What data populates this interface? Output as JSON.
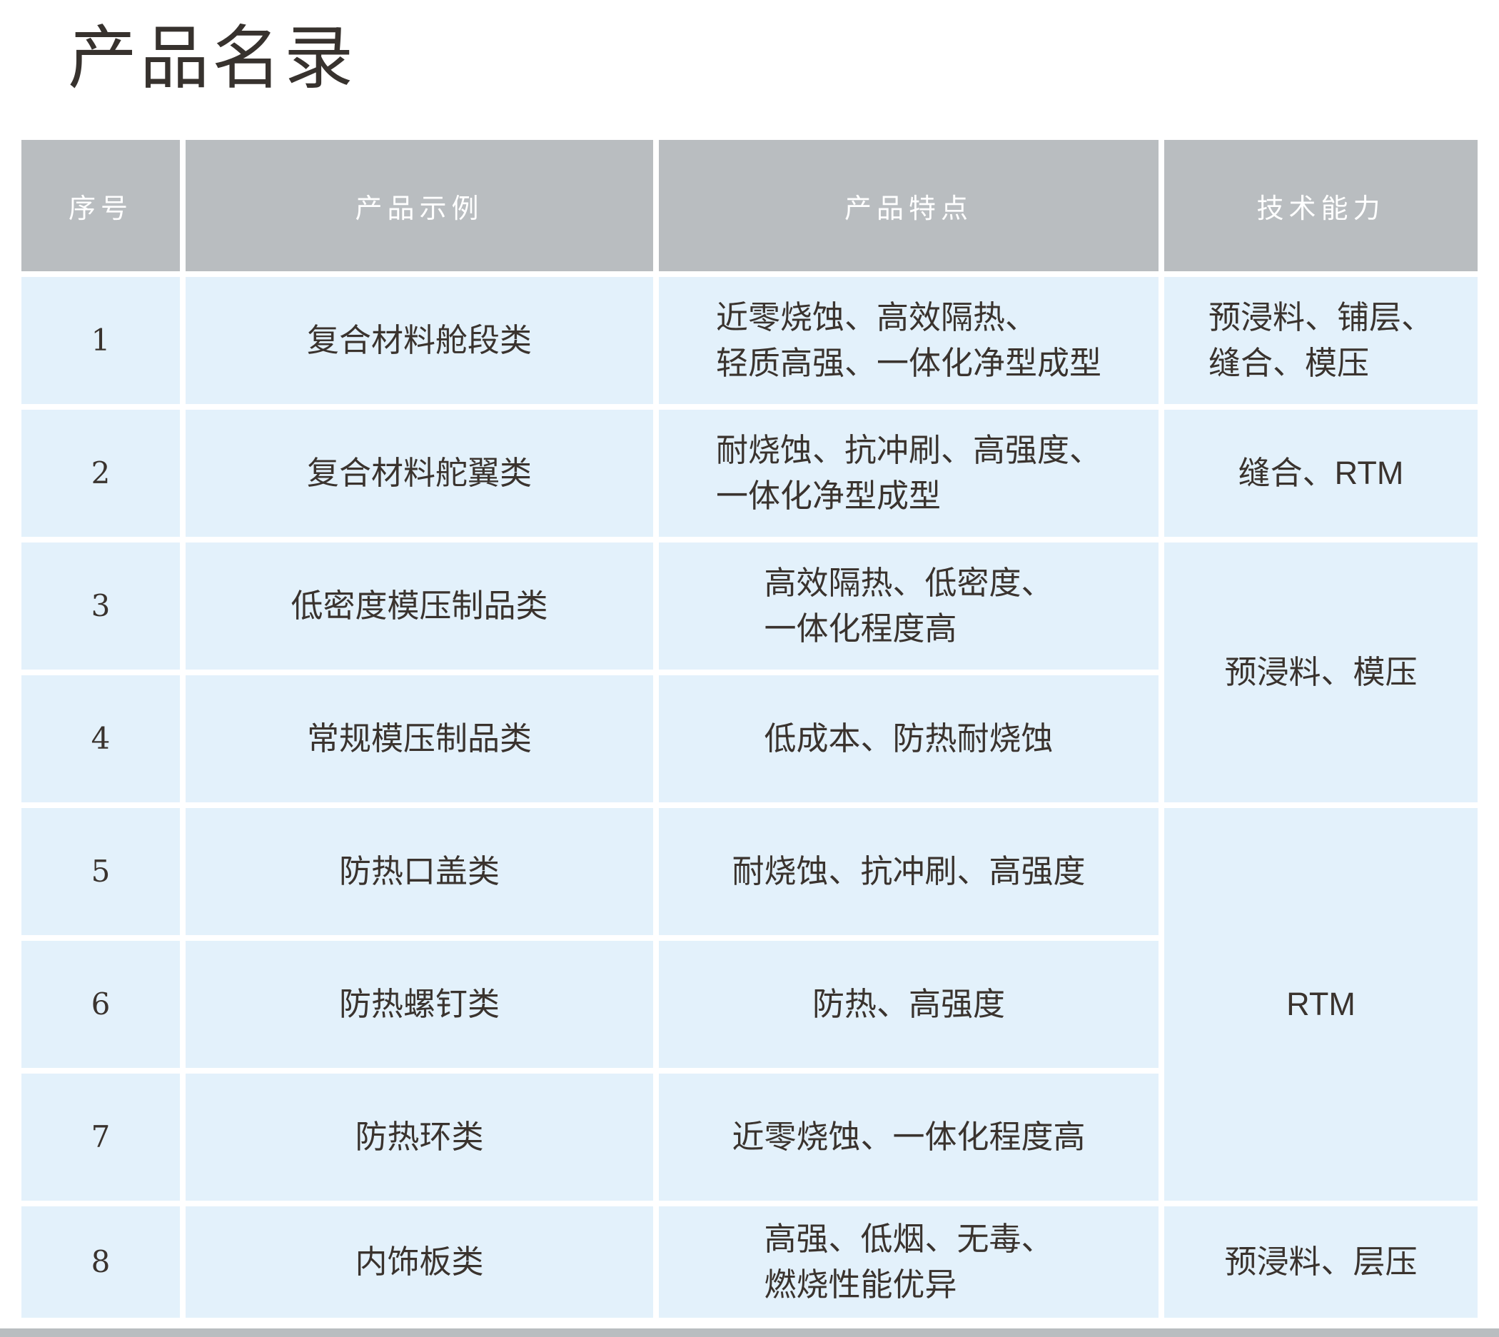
{
  "page": {
    "title": "产品名录"
  },
  "colors": {
    "header_bg": "#b9bdc0",
    "header_text": "#ffffff",
    "cell_bg": "#e3f1fb",
    "body_text": "#3a332e",
    "bottom_bar": "#b9bdc0",
    "page_bg": "#ffffff"
  },
  "table": {
    "headers": [
      "序号",
      "产品示例",
      "产品特点",
      "技术能力"
    ],
    "rows": [
      {
        "no": "1",
        "product": "复合材料舱段类",
        "features": "近零烧蚀、高效隔热、\n轻质高强、一体化净型成型",
        "tech": "预浸料、铺层、\n缝合、模压",
        "tech_rowspan": 1
      },
      {
        "no": "2",
        "product": "复合材料舵翼类",
        "features": "耐烧蚀、抗冲刷、高强度、\n一体化净型成型",
        "tech": "缝合、RTM",
        "tech_rowspan": 1
      },
      {
        "no": "3",
        "product": "低密度模压制品类",
        "features": "高效隔热、低密度、\n一体化程度高",
        "tech": "预浸料、模压",
        "tech_rowspan": 2
      },
      {
        "no": "4",
        "product": "常规模压制品类",
        "features": "低成本、防热耐烧蚀"
      },
      {
        "no": "5",
        "product": "防热口盖类",
        "features": "耐烧蚀、抗冲刷、高强度",
        "tech": "RTM",
        "tech_rowspan": 3
      },
      {
        "no": "6",
        "product": "防热螺钉类",
        "features": "防热、高强度"
      },
      {
        "no": "7",
        "product": "防热环类",
        "features": "近零烧蚀、一体化程度高"
      },
      {
        "no": "8",
        "product": "内饰板类",
        "features": "高强、低烟、无毒、\n燃烧性能优异",
        "tech": "预浸料、层压",
        "tech_rowspan": 1
      }
    ]
  }
}
